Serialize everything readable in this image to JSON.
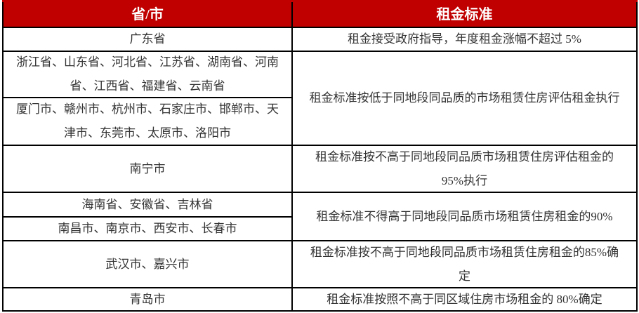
{
  "header": {
    "col1": "省/市",
    "col2": "租金标准"
  },
  "rows": [
    {
      "regions": [
        "广东省"
      ],
      "standard": "租金接受政府指导，年度租金涨幅不超过 5%"
    },
    {
      "regions": [
        "浙江省、山东省、河北省、江苏省、湖南省、河南省、江西省、福建省、云南省",
        "厦门市、赣州市、杭州市、石家庄市、邯郸市、天津市、东莞市、太原市、洛阳市"
      ],
      "standard": "租金标准按低于同地段同品质的市场租赁住房评估租金执行"
    },
    {
      "regions": [
        "南宁市"
      ],
      "standard": "租金标准按不高于同地段同品质市场租赁住房评估租金的 95%执行"
    },
    {
      "regions": [
        "海南省、安徽省、吉林省",
        "南昌市、南京市、西安市、长春市"
      ],
      "standard": "租金标准不得高于同地段同品质市场租赁住房租金的90%"
    },
    {
      "regions": [
        "武汉市、嘉兴市"
      ],
      "standard": "租金标准按不高于同地段同品质市场租赁住房租金的85%确定"
    },
    {
      "regions": [
        "青岛市"
      ],
      "standard": "租金标准按照不高于同区域住房市场租金的 80%确定"
    }
  ],
  "colors": {
    "header_bg": "#c00000",
    "header_text": "#ffffff"
  }
}
